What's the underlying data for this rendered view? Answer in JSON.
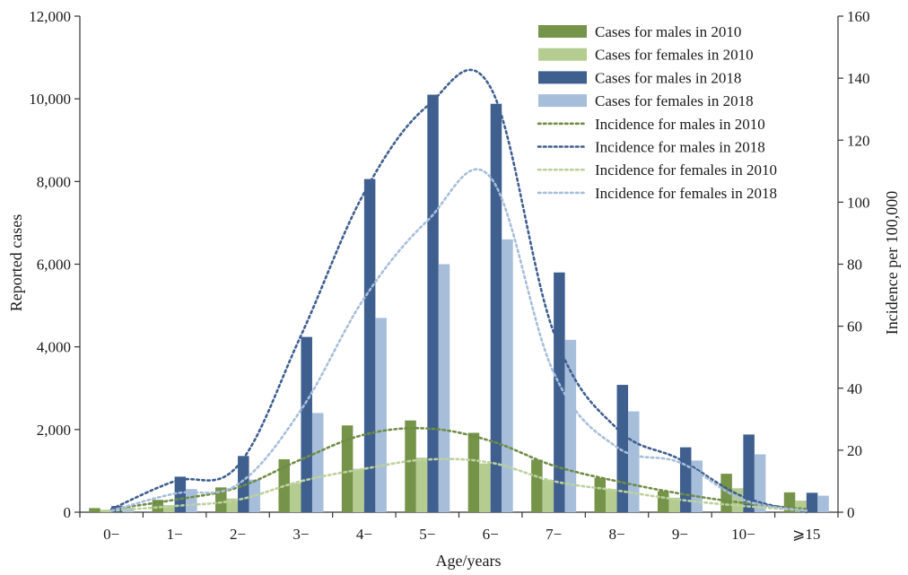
{
  "chart_data": {
    "type": "bar",
    "xlabel": "Age/years",
    "ylabel": "Reported cases",
    "y2label": "Incidence per 100,000",
    "categories": [
      "0−",
      "1−",
      "2−",
      "3−",
      "4−",
      "5−",
      "6−",
      "7−",
      "8−",
      "9−",
      "10−",
      "⩾15"
    ],
    "ylim": [
      0,
      12000
    ],
    "y_ticks": [
      "0",
      "2,000",
      "4,000",
      "6,000",
      "8,000",
      "10,000",
      "12,000"
    ],
    "y2lim": [
      0,
      160
    ],
    "y2_ticks": [
      "0",
      "20",
      "40",
      "60",
      "80",
      "100",
      "120",
      "140",
      "160"
    ],
    "legend_position": "top-right",
    "grid": false,
    "bar_series": [
      {
        "name": "Cases for males in 2010",
        "color": "#76934a",
        "values": [
          100,
          300,
          600,
          1280,
          2100,
          2220,
          1920,
          1270,
          830,
          510,
          930,
          480
        ]
      },
      {
        "name": "Cases for females in 2010",
        "color": "#b4cc90",
        "values": [
          60,
          170,
          330,
          700,
          1050,
          1320,
          1180,
          780,
          560,
          350,
          580,
          280
        ]
      },
      {
        "name": "Cases for males in 2018",
        "color": "#3f5f8f",
        "values": [
          150,
          860,
          1360,
          4240,
          8060,
          10100,
          9880,
          5800,
          3080,
          1570,
          1880,
          470
        ]
      },
      {
        "name": "Cases for females in 2018",
        "color": "#a7bedb",
        "values": [
          110,
          560,
          790,
          2400,
          4700,
          6000,
          6600,
          4170,
          2440,
          1250,
          1400,
          400
        ]
      }
    ],
    "line_series": [
      {
        "name": "Incidence for males in 2010",
        "color": "#6f8c46",
        "values": [
          1,
          4,
          8,
          17,
          25,
          27,
          23,
          15,
          10,
          6,
          3,
          1
        ]
      },
      {
        "name": "Incidence for males in 2018",
        "color": "#3f5f8f",
        "values": [
          1,
          10,
          15,
          57,
          103,
          131,
          137,
          58,
          27,
          17,
          5,
          0
        ]
      },
      {
        "name": "Incidence for females in 2010",
        "color": "#bcd29c",
        "values": [
          0.5,
          2,
          4,
          10,
          14,
          17,
          16,
          10,
          7,
          4,
          2,
          0.5
        ]
      },
      {
        "name": "Incidence for females in 2018",
        "color": "#a7bedb",
        "values": [
          0.5,
          6,
          9,
          33,
          69,
          94,
          108,
          45,
          21,
          16,
          4,
          0.5
        ]
      }
    ],
    "legend": [
      "Cases for males in 2010",
      "Cases for females in 2010",
      "Cases for males in 2018",
      "Cases for females in 2018",
      "Incidence for males in 2010",
      "Incidence for males in 2018",
      "Incidence for females in 2010",
      "Incidence for females in 2018"
    ]
  }
}
